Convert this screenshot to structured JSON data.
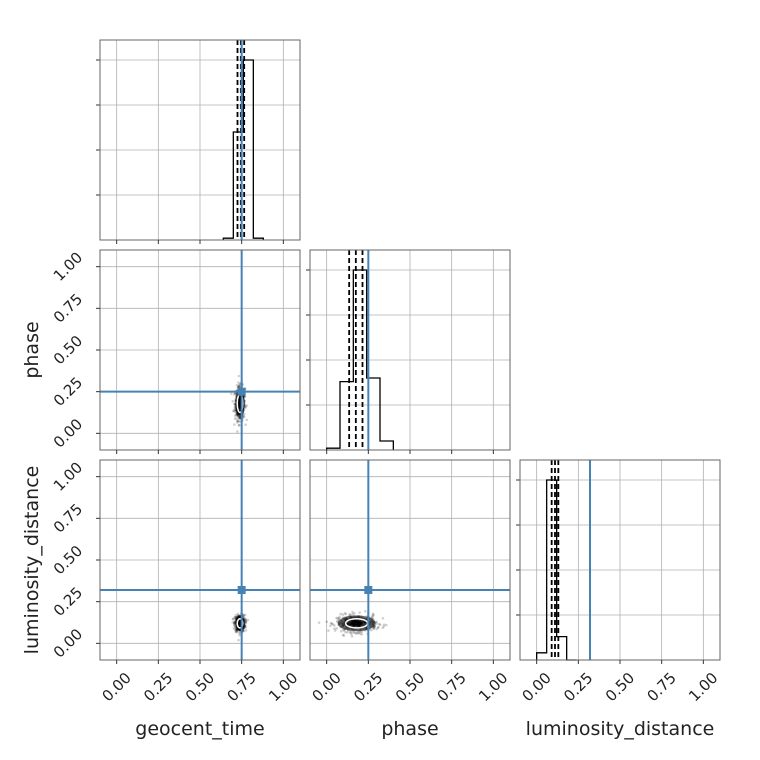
{
  "chart_data": {
    "type": "corner",
    "parameters": [
      "geocent_time",
      "phase",
      "luminosity_distance"
    ],
    "range": [
      -0.1,
      1.1
    ],
    "tick_values": [
      0.0,
      0.25,
      0.5,
      0.75,
      1.0
    ],
    "tick_labels": [
      "0.00",
      "0.25",
      "0.50",
      "0.75",
      "1.00"
    ],
    "truth_color": "#4682b4",
    "truths": {
      "geocent_time": 0.75,
      "phase": 0.25,
      "luminosity_distance": 0.32
    },
    "grid": true,
    "histograms": [
      {
        "parameter": "geocent_time",
        "bin_edges": [
          0.64,
          0.7,
          0.76,
          0.82,
          0.88
        ],
        "heights": [
          0.01,
          0.6,
          1.0,
          0.01
        ],
        "quantiles": [
          0.725,
          0.745,
          0.765
        ]
      },
      {
        "parameter": "phase",
        "bin_edges": [
          0.0,
          0.08,
          0.16,
          0.24,
          0.32,
          0.4
        ],
        "heights": [
          0.01,
          0.38,
          1.0,
          0.4,
          0.05
        ],
        "quantiles": [
          0.135,
          0.175,
          0.215
        ]
      },
      {
        "parameter": "luminosity_distance",
        "bin_edges": [
          0.0,
          0.06,
          0.12,
          0.18,
          0.24
        ],
        "heights": [
          0.04,
          1.0,
          0.13,
          0.0
        ],
        "quantiles": [
          0.09,
          0.11,
          0.13
        ]
      }
    ],
    "scatter_2d": [
      {
        "x_param": "geocent_time",
        "y_param": "phase",
        "center": [
          0.74,
          0.18
        ],
        "spread": [
          0.015,
          0.05
        ]
      },
      {
        "x_param": "geocent_time",
        "y_param": "luminosity_distance",
        "center": [
          0.74,
          0.12
        ],
        "spread": [
          0.015,
          0.025
        ]
      },
      {
        "x_param": "phase",
        "y_param": "luminosity_distance",
        "center": [
          0.18,
          0.12
        ],
        "spread": [
          0.06,
          0.025
        ]
      }
    ]
  }
}
